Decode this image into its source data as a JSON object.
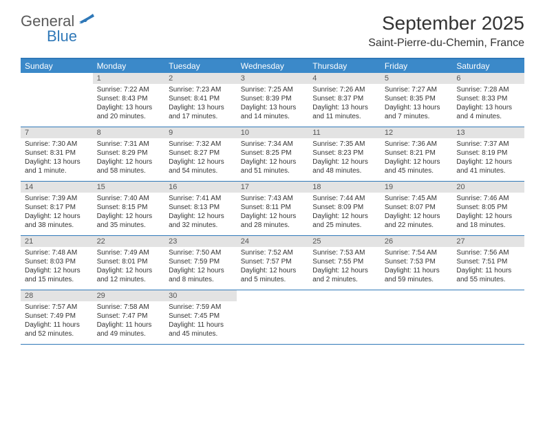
{
  "logo": {
    "text1": "General",
    "text2": "Blue",
    "icon_color": "#2f78b8"
  },
  "title": "September 2025",
  "location": "Saint-Pierre-du-Chemin, France",
  "colors": {
    "header_bar": "#3b89c9",
    "border": "#2f78b8",
    "daynum_bg": "#e3e3e3",
    "text": "#333333",
    "white": "#ffffff"
  },
  "dow": [
    "Sunday",
    "Monday",
    "Tuesday",
    "Wednesday",
    "Thursday",
    "Friday",
    "Saturday"
  ],
  "weeks": [
    [
      {
        "n": "",
        "sr": "",
        "ss": "",
        "dl": ""
      },
      {
        "n": "1",
        "sr": "Sunrise: 7:22 AM",
        "ss": "Sunset: 8:43 PM",
        "dl": "Daylight: 13 hours and 20 minutes."
      },
      {
        "n": "2",
        "sr": "Sunrise: 7:23 AM",
        "ss": "Sunset: 8:41 PM",
        "dl": "Daylight: 13 hours and 17 minutes."
      },
      {
        "n": "3",
        "sr": "Sunrise: 7:25 AM",
        "ss": "Sunset: 8:39 PM",
        "dl": "Daylight: 13 hours and 14 minutes."
      },
      {
        "n": "4",
        "sr": "Sunrise: 7:26 AM",
        "ss": "Sunset: 8:37 PM",
        "dl": "Daylight: 13 hours and 11 minutes."
      },
      {
        "n": "5",
        "sr": "Sunrise: 7:27 AM",
        "ss": "Sunset: 8:35 PM",
        "dl": "Daylight: 13 hours and 7 minutes."
      },
      {
        "n": "6",
        "sr": "Sunrise: 7:28 AM",
        "ss": "Sunset: 8:33 PM",
        "dl": "Daylight: 13 hours and 4 minutes."
      }
    ],
    [
      {
        "n": "7",
        "sr": "Sunrise: 7:30 AM",
        "ss": "Sunset: 8:31 PM",
        "dl": "Daylight: 13 hours and 1 minute."
      },
      {
        "n": "8",
        "sr": "Sunrise: 7:31 AM",
        "ss": "Sunset: 8:29 PM",
        "dl": "Daylight: 12 hours and 58 minutes."
      },
      {
        "n": "9",
        "sr": "Sunrise: 7:32 AM",
        "ss": "Sunset: 8:27 PM",
        "dl": "Daylight: 12 hours and 54 minutes."
      },
      {
        "n": "10",
        "sr": "Sunrise: 7:34 AM",
        "ss": "Sunset: 8:25 PM",
        "dl": "Daylight: 12 hours and 51 minutes."
      },
      {
        "n": "11",
        "sr": "Sunrise: 7:35 AM",
        "ss": "Sunset: 8:23 PM",
        "dl": "Daylight: 12 hours and 48 minutes."
      },
      {
        "n": "12",
        "sr": "Sunrise: 7:36 AM",
        "ss": "Sunset: 8:21 PM",
        "dl": "Daylight: 12 hours and 45 minutes."
      },
      {
        "n": "13",
        "sr": "Sunrise: 7:37 AM",
        "ss": "Sunset: 8:19 PM",
        "dl": "Daylight: 12 hours and 41 minutes."
      }
    ],
    [
      {
        "n": "14",
        "sr": "Sunrise: 7:39 AM",
        "ss": "Sunset: 8:17 PM",
        "dl": "Daylight: 12 hours and 38 minutes."
      },
      {
        "n": "15",
        "sr": "Sunrise: 7:40 AM",
        "ss": "Sunset: 8:15 PM",
        "dl": "Daylight: 12 hours and 35 minutes."
      },
      {
        "n": "16",
        "sr": "Sunrise: 7:41 AM",
        "ss": "Sunset: 8:13 PM",
        "dl": "Daylight: 12 hours and 32 minutes."
      },
      {
        "n": "17",
        "sr": "Sunrise: 7:43 AM",
        "ss": "Sunset: 8:11 PM",
        "dl": "Daylight: 12 hours and 28 minutes."
      },
      {
        "n": "18",
        "sr": "Sunrise: 7:44 AM",
        "ss": "Sunset: 8:09 PM",
        "dl": "Daylight: 12 hours and 25 minutes."
      },
      {
        "n": "19",
        "sr": "Sunrise: 7:45 AM",
        "ss": "Sunset: 8:07 PM",
        "dl": "Daylight: 12 hours and 22 minutes."
      },
      {
        "n": "20",
        "sr": "Sunrise: 7:46 AM",
        "ss": "Sunset: 8:05 PM",
        "dl": "Daylight: 12 hours and 18 minutes."
      }
    ],
    [
      {
        "n": "21",
        "sr": "Sunrise: 7:48 AM",
        "ss": "Sunset: 8:03 PM",
        "dl": "Daylight: 12 hours and 15 minutes."
      },
      {
        "n": "22",
        "sr": "Sunrise: 7:49 AM",
        "ss": "Sunset: 8:01 PM",
        "dl": "Daylight: 12 hours and 12 minutes."
      },
      {
        "n": "23",
        "sr": "Sunrise: 7:50 AM",
        "ss": "Sunset: 7:59 PM",
        "dl": "Daylight: 12 hours and 8 minutes."
      },
      {
        "n": "24",
        "sr": "Sunrise: 7:52 AM",
        "ss": "Sunset: 7:57 PM",
        "dl": "Daylight: 12 hours and 5 minutes."
      },
      {
        "n": "25",
        "sr": "Sunrise: 7:53 AM",
        "ss": "Sunset: 7:55 PM",
        "dl": "Daylight: 12 hours and 2 minutes."
      },
      {
        "n": "26",
        "sr": "Sunrise: 7:54 AM",
        "ss": "Sunset: 7:53 PM",
        "dl": "Daylight: 11 hours and 59 minutes."
      },
      {
        "n": "27",
        "sr": "Sunrise: 7:56 AM",
        "ss": "Sunset: 7:51 PM",
        "dl": "Daylight: 11 hours and 55 minutes."
      }
    ],
    [
      {
        "n": "28",
        "sr": "Sunrise: 7:57 AM",
        "ss": "Sunset: 7:49 PM",
        "dl": "Daylight: 11 hours and 52 minutes."
      },
      {
        "n": "29",
        "sr": "Sunrise: 7:58 AM",
        "ss": "Sunset: 7:47 PM",
        "dl": "Daylight: 11 hours and 49 minutes."
      },
      {
        "n": "30",
        "sr": "Sunrise: 7:59 AM",
        "ss": "Sunset: 7:45 PM",
        "dl": "Daylight: 11 hours and 45 minutes."
      },
      {
        "n": "",
        "sr": "",
        "ss": "",
        "dl": ""
      },
      {
        "n": "",
        "sr": "",
        "ss": "",
        "dl": ""
      },
      {
        "n": "",
        "sr": "",
        "ss": "",
        "dl": ""
      },
      {
        "n": "",
        "sr": "",
        "ss": "",
        "dl": ""
      }
    ]
  ]
}
